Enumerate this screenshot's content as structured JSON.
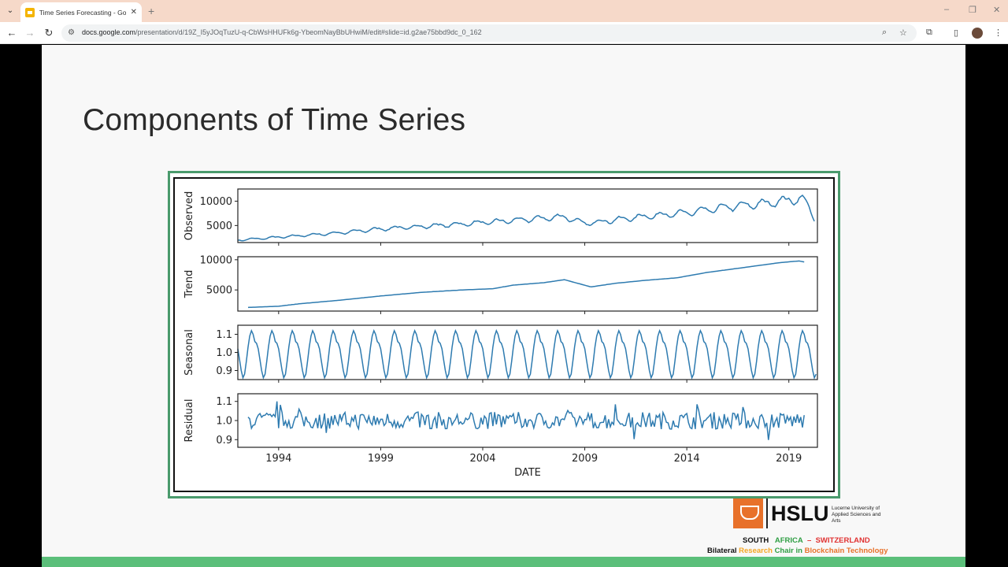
{
  "browser": {
    "tab_title": "Time Series Forecasting - Goog",
    "url_host": "docs.google.com",
    "url_path": "/presentation/d/19Z_I5yJOqTuzU-q-CbWsHHUFk6g-YbeomNayBbUHwiM/edit#slide=id.g2ae75bbd9dc_0_162"
  },
  "slide": {
    "title": "Components of Time Series"
  },
  "logos": {
    "hslu": "HSLU",
    "hslu_subtitle": "Lucerne University of Applied Sciences and Arts",
    "tagline_1": {
      "south": "SOUTH",
      "africa": "AFRICA",
      "dash": "–",
      "switzerland": "SWITZERLAND"
    },
    "tagline_2": {
      "bilateral": "Bilateral",
      "research": "Research",
      "chair": "Chair in",
      "blockchain": "Blockchain Technology"
    },
    "colors": {
      "orange": "#e8712a",
      "green": "#2f9e44",
      "yellow": "#f5a623",
      "red": "#e03131"
    }
  },
  "chart_data": {
    "type": "line",
    "xlabel": "DATE",
    "x_ticks": [
      "1994",
      "1999",
      "2004",
      "2009",
      "2014",
      "2019"
    ],
    "x_range": [
      1992.0,
      2020.4
    ],
    "line_color": "#2e7bb0",
    "panels": [
      {
        "ylabel": "Observed",
        "ylim": [
          1500,
          12500
        ],
        "y_ticks": [
          {
            "v": 10000,
            "label": "10000"
          },
          {
            "v": 5000,
            "label": "5000"
          }
        ],
        "keypoints": [
          [
            1992.0,
            2000
          ],
          [
            1993.0,
            2300
          ],
          [
            1995.0,
            2900
          ],
          [
            1997.0,
            3500
          ],
          [
            1999.0,
            4300
          ],
          [
            2001.0,
            4800
          ],
          [
            2003.0,
            5300
          ],
          [
            2005.0,
            5900
          ],
          [
            2007.0,
            6500
          ],
          [
            2008.0,
            6800
          ],
          [
            2009.0,
            5400
          ],
          [
            2010.0,
            5900
          ],
          [
            2012.0,
            6900
          ],
          [
            2014.0,
            7600
          ],
          [
            2016.0,
            8800
          ],
          [
            2018.0,
            9600
          ],
          [
            2019.2,
            10400
          ],
          [
            2019.8,
            10200
          ],
          [
            2020.3,
            6000
          ]
        ],
        "seasonal_amplitude": 0.09,
        "noise": 0.04
      },
      {
        "ylabel": "Trend",
        "ylim": [
          1500,
          10500
        ],
        "y_ticks": [
          {
            "v": 10000,
            "label": "10000"
          },
          {
            "v": 5000,
            "label": "5000"
          }
        ],
        "x_start": 1992.5,
        "x_end": 2019.8,
        "keypoints": [
          [
            1992.5,
            2100
          ],
          [
            1994.0,
            2300
          ],
          [
            1995.0,
            2700
          ],
          [
            1997.0,
            3300
          ],
          [
            1999.0,
            4000
          ],
          [
            2001.0,
            4600
          ],
          [
            2003.0,
            5000
          ],
          [
            2004.5,
            5200
          ],
          [
            2005.5,
            5800
          ],
          [
            2007.0,
            6200
          ],
          [
            2008.0,
            6700
          ],
          [
            2009.3,
            5500
          ],
          [
            2010.5,
            6100
          ],
          [
            2012.0,
            6600
          ],
          [
            2013.5,
            7000
          ],
          [
            2015.0,
            7900
          ],
          [
            2017.0,
            8800
          ],
          [
            2018.5,
            9500
          ],
          [
            2019.5,
            9800
          ],
          [
            2019.8,
            9600
          ]
        ]
      },
      {
        "ylabel": "Seasonal",
        "ylim": [
          0.85,
          1.15
        ],
        "y_ticks": [
          {
            "v": 1.1,
            "label": "1.1"
          },
          {
            "v": 1.0,
            "label": "1.0"
          },
          {
            "v": 0.9,
            "label": "0.9"
          }
        ],
        "pattern": [
          1.02,
          0.96,
          0.9,
          0.86,
          0.88,
          0.95,
          1.03,
          1.09,
          1.12,
          1.1,
          1.06,
          1.05
        ]
      },
      {
        "ylabel": "Residual",
        "ylim": [
          0.86,
          1.14
        ],
        "y_ticks": [
          {
            "v": 1.1,
            "label": "1.1"
          },
          {
            "v": 1.0,
            "label": "1.0"
          },
          {
            "v": 0.9,
            "label": "0.9"
          }
        ],
        "amplitude": 0.045
      }
    ]
  }
}
